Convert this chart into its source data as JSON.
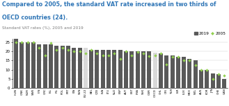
{
  "title_line1": "Compared to 2005, the standard VAT rate increased in two thirds of",
  "title_line2": "OECD countries (24).",
  "subtitle": "Standard VAT rates (%), 2005 and 2019",
  "title_color": "#2e75b6",
  "title_fontsize": 5.8,
  "subtitle_fontsize": 4.2,
  "categories": [
    "HUN",
    "GNK",
    "NOR",
    "SWE",
    "FIN",
    "GRC",
    "ISL",
    "IRL",
    "POL",
    "PRT",
    "ITA",
    "SVN",
    "EU-22",
    "BEL",
    "CZE",
    "LVA",
    "LTU",
    "NLD",
    "ESP",
    "AUT",
    "EST",
    "FRA",
    "SVK",
    "GBR",
    "OECD",
    "CHL",
    "CRI",
    "TUR",
    "ISR",
    "LUX",
    "MEX",
    "NZL",
    "AUS",
    "KOR",
    "JPN",
    "CHE",
    "CAN"
  ],
  "values_2019": [
    27,
    25,
    25,
    25,
    24,
    24,
    24,
    23,
    23,
    23,
    22,
    22,
    22,
    21,
    21,
    21,
    21,
    21,
    21,
    20,
    20,
    20,
    20,
    20,
    19.3,
    19,
    18,
    18,
    17,
    17,
    16,
    15,
    10,
    10,
    8,
    7.7,
    5
  ],
  "values_2005": [
    25,
    25,
    25,
    25,
    22,
    18,
    24.5,
    21,
    22,
    21,
    20,
    20,
    19,
    21,
    19,
    18,
    18,
    19,
    16,
    20,
    18,
    19.6,
    19,
    17.5,
    17.9,
    19,
    13,
    17,
    17,
    15,
    15,
    12.5,
    10,
    10,
    5,
    7.6,
    7
  ],
  "bar_color_dark": "#595959",
  "bar_color_light": "#d9d9d9",
  "dot_color": "#92d050",
  "light_bars": [
    "EU-22",
    "OECD"
  ],
  "legend_2019": "2019",
  "legend_2005": "2005",
  "ylim": [
    0,
    27
  ],
  "yticks": [
    0,
    5,
    10,
    15,
    20,
    25
  ],
  "background_color": "#ffffff"
}
